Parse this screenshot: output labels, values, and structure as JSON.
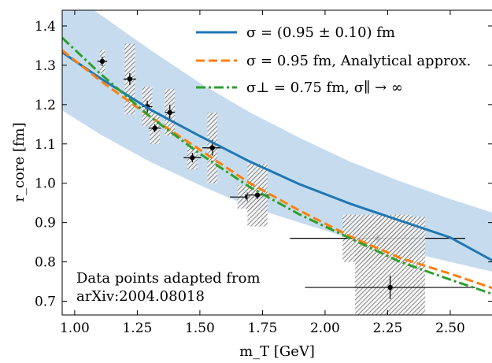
{
  "chart_data": {
    "type": "line",
    "xlabel": "m_T [GeV]",
    "ylabel": "r_core [fm]",
    "xlim": [
      0.95,
      2.67
    ],
    "ylim": [
      0.665,
      1.44
    ],
    "x_ticks": [
      "1.00",
      "1.25",
      "1.50",
      "1.75",
      "2.00",
      "2.25",
      "2.50"
    ],
    "y_ticks": [
      "0.7",
      "0.8",
      "0.9",
      "1.0",
      "1.1",
      "1.2",
      "1.3",
      "1.4"
    ],
    "legend": {
      "position": "top-right",
      "entries": [
        {
          "label": "σ = (0.95 ± 0.10) fm",
          "color": "#1f77b4",
          "style": "solid"
        },
        {
          "label": "σ = 0.95 fm, Analytical approx.",
          "color": "#ff7f0e",
          "style": "dashed"
        },
        {
          "label": "σ⊥ = 0.75 fm, σ∥ → ∞",
          "color": "#2ca02c",
          "style": "dashdot"
        }
      ]
    },
    "annotation": [
      "Data points adapted from",
      "arXiv:2004.08018"
    ],
    "band": {
      "name": "σ = (0.95 ± 0.10) fm band",
      "color": "#c6dcee",
      "x": [
        0.95,
        1.1,
        1.3,
        1.5,
        1.7,
        1.9,
        2.1,
        2.3,
        2.5,
        2.67
      ],
      "lower": [
        1.185,
        1.125,
        1.055,
        0.995,
        0.94,
        0.9,
        0.86,
        0.83,
        0.8,
        0.775
      ],
      "upper": [
        1.5,
        1.43,
        1.34,
        1.255,
        1.18,
        1.115,
        1.055,
        1.005,
        0.96,
        0.925
      ]
    },
    "series": [
      {
        "name": "σ = (0.95 ± 0.10) fm",
        "color": "#1f77b4",
        "style": "solid",
        "x": [
          0.95,
          1.1,
          1.3,
          1.5,
          1.7,
          1.9,
          2.1,
          2.3,
          2.5,
          2.67
        ],
        "y": [
          1.333,
          1.268,
          1.188,
          1.12,
          1.055,
          0.997,
          0.948,
          0.905,
          0.862,
          0.803
        ]
      },
      {
        "name": "σ = 0.95 fm, Analytical approx.",
        "color": "#ff7f0e",
        "style": "dashed",
        "x": [
          0.95,
          1.1,
          1.3,
          1.5,
          1.7,
          1.9,
          2.1,
          2.3,
          2.5,
          2.67
        ],
        "y": [
          1.338,
          1.262,
          1.17,
          1.085,
          1.0,
          0.93,
          0.865,
          0.81,
          0.77,
          0.733
        ]
      },
      {
        "name": "σ⊥ = 0.75 fm, σ∥ → ∞",
        "color": "#2ca02c",
        "style": "dashdot",
        "x": [
          0.95,
          1.1,
          1.3,
          1.5,
          1.7,
          1.9,
          2.1,
          2.3,
          2.5,
          2.67
        ],
        "y": [
          1.37,
          1.28,
          1.17,
          1.075,
          0.99,
          0.92,
          0.86,
          0.8,
          0.755,
          0.718
        ]
      }
    ],
    "points": [
      {
        "x": 1.11,
        "y": 1.31,
        "xerr": 0.02,
        "yerr": 0.012,
        "sys_w": 0.01,
        "sys_h": 0.03
      },
      {
        "x": 1.22,
        "y": 1.265,
        "xerr": 0.025,
        "yerr": 0.015,
        "sys_w": 0.02,
        "sys_h": 0.09
      },
      {
        "x": 1.29,
        "y": 1.195,
        "xerr": 0.02,
        "yerr": 0.015,
        "sys_w": 0.02,
        "sys_h": 0.05
      },
      {
        "x": 1.32,
        "y": 1.14,
        "xerr": 0.025,
        "yerr": 0.01,
        "sys_w": 0.02,
        "sys_h": 0.04
      },
      {
        "x": 1.38,
        "y": 1.18,
        "xerr": 0.02,
        "yerr": 0.02,
        "sys_w": 0.02,
        "sys_h": 0.06
      },
      {
        "x": 1.47,
        "y": 1.065,
        "xerr": 0.035,
        "yerr": 0.012,
        "sys_w": 0.02,
        "sys_h": 0.03
      },
      {
        "x": 1.55,
        "y": 1.09,
        "xerr": 0.04,
        "yerr": 0.02,
        "sys_w": 0.02,
        "sys_h": 0.09
      },
      {
        "x": 1.69,
        "y": 0.965,
        "xerr": 0.07,
        "yerr": 0.012,
        "sys_w": 0.04,
        "sys_h": 0.03
      },
      {
        "x": 1.73,
        "y": 0.97,
        "xerr": 0.05,
        "yerr": 0.01,
        "sys_w": 0.04,
        "sys_h": 0.08
      },
      {
        "x": 2.21,
        "y": 0.86,
        "xerr": 0.35,
        "yerr": 0.01,
        "sys_w": 0.14,
        "sys_h": 0.06
      },
      {
        "x": 2.26,
        "y": 0.735,
        "xerr": 0.34,
        "yerr": 0.03,
        "sys_w": 0.14,
        "sys_h": 0.18
      }
    ]
  }
}
